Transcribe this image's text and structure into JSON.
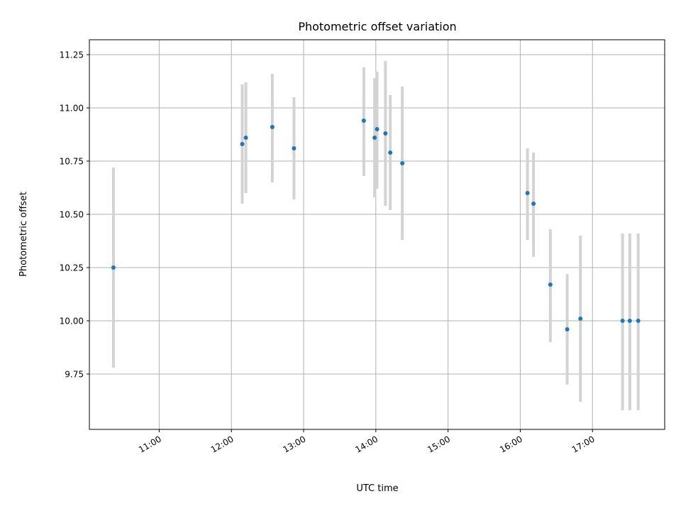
{
  "chart_data": {
    "type": "scatter",
    "title": "Photometric offset variation",
    "xlabel": "UTC time",
    "ylabel": "Photometric offset",
    "x_ticks": [
      "11:00",
      "12:00",
      "13:00",
      "14:00",
      "15:00",
      "16:00",
      "17:00"
    ],
    "y_ticks": [
      "9.75",
      "10.00",
      "10.25",
      "10.50",
      "10.75",
      "11.00",
      "11.25"
    ],
    "xlim": [
      "10:02",
      "18:00"
    ],
    "ylim": [
      9.49,
      11.32
    ],
    "grid": true,
    "colors": {
      "point": "#1f77b4",
      "errorbar": "#d3d3d3",
      "grid": "#b0b0b0"
    },
    "points": [
      {
        "x": "10:22",
        "y": 10.25,
        "err_low": 9.78,
        "err_high": 10.72
      },
      {
        "x": "12:09",
        "y": 10.83,
        "err_low": 10.55,
        "err_high": 11.11
      },
      {
        "x": "12:12",
        "y": 10.86,
        "err_low": 10.6,
        "err_high": 11.12
      },
      {
        "x": "12:34",
        "y": 10.91,
        "err_low": 10.65,
        "err_high": 11.16
      },
      {
        "x": "12:52",
        "y": 10.81,
        "err_low": 10.57,
        "err_high": 11.05
      },
      {
        "x": "13:50",
        "y": 10.94,
        "err_low": 10.68,
        "err_high": 11.19
      },
      {
        "x": "13:59",
        "y": 10.86,
        "err_low": 10.58,
        "err_high": 11.14
      },
      {
        "x": "14:01",
        "y": 10.9,
        "err_low": 10.62,
        "err_high": 11.17
      },
      {
        "x": "14:08",
        "y": 10.88,
        "err_low": 10.54,
        "err_high": 11.22
      },
      {
        "x": "14:12",
        "y": 10.79,
        "err_low": 10.52,
        "err_high": 11.06
      },
      {
        "x": "14:22",
        "y": 10.74,
        "err_low": 10.38,
        "err_high": 11.1
      },
      {
        "x": "16:06",
        "y": 10.6,
        "err_low": 10.38,
        "err_high": 10.81
      },
      {
        "x": "16:11",
        "y": 10.55,
        "err_low": 10.3,
        "err_high": 10.79
      },
      {
        "x": "16:25",
        "y": 10.17,
        "err_low": 9.9,
        "err_high": 10.43
      },
      {
        "x": "16:39",
        "y": 9.96,
        "err_low": 9.7,
        "err_high": 10.22
      },
      {
        "x": "16:50",
        "y": 10.01,
        "err_low": 9.62,
        "err_high": 10.4
      },
      {
        "x": "17:25",
        "y": 10.0,
        "err_low": 9.58,
        "err_high": 10.41
      },
      {
        "x": "17:31",
        "y": 10.0,
        "err_low": 9.58,
        "err_high": 10.41
      },
      {
        "x": "17:38",
        "y": 10.0,
        "err_low": 9.58,
        "err_high": 10.41
      }
    ]
  }
}
